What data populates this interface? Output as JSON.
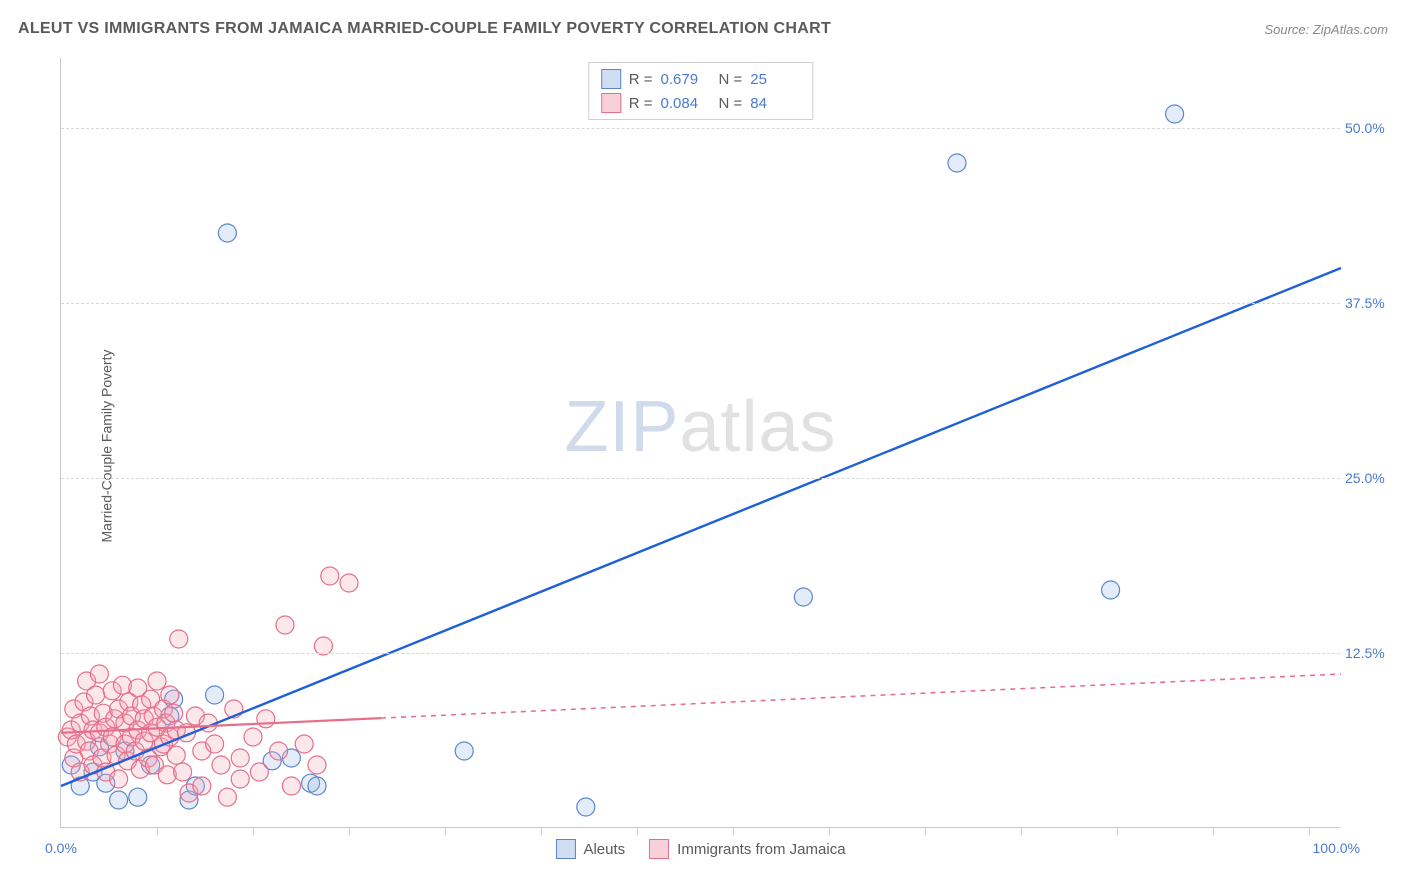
{
  "header": {
    "title": "ALEUT VS IMMIGRANTS FROM JAMAICA MARRIED-COUPLE FAMILY POVERTY CORRELATION CHART",
    "source": "Source: ZipAtlas.com"
  },
  "ylabel": "Married-Couple Family Poverty",
  "watermark": {
    "part1": "ZIP",
    "part2": "atlas"
  },
  "chart": {
    "type": "scatter",
    "background_color": "#ffffff",
    "grid_color": "#d8d8d8",
    "axis_color": "#c9c9c9",
    "xlim": [
      0,
      100
    ],
    "ylim": [
      0,
      55
    ],
    "x_ticks_minor_step": 7.5,
    "yticks": [
      {
        "v": 12.5,
        "label": "12.5%"
      },
      {
        "v": 25.0,
        "label": "25.0%"
      },
      {
        "v": 37.5,
        "label": "37.5%"
      },
      {
        "v": 50.0,
        "label": "50.0%"
      }
    ],
    "x_axis_labels": {
      "left": "0.0%",
      "right": "100.0%"
    },
    "marker_radius": 9,
    "marker_stroke_width": 1.2,
    "marker_fill_opacity": 0.28,
    "series": [
      {
        "id": "aleuts",
        "label": "Aleuts",
        "color_fill": "#9fbce8",
        "color_stroke": "#5b86cc",
        "line_color": "#1f5fd8",
        "line_width": 2.4,
        "line_dash": "none",
        "regression": {
          "x1": 0,
          "y1": 3.0,
          "x2": 100,
          "y2": 40.0,
          "solid_until_x": 100
        },
        "R": "0.679",
        "N": "25",
        "points": [
          [
            0.8,
            4.5
          ],
          [
            1.5,
            3.0
          ],
          [
            2.5,
            4.0
          ],
          [
            3.5,
            3.2
          ],
          [
            4.5,
            2.0
          ],
          [
            5.0,
            5.5
          ],
          [
            3.0,
            5.8
          ],
          [
            6.0,
            2.2
          ],
          [
            7.0,
            4.5
          ],
          [
            8.5,
            8.0
          ],
          [
            8.8,
            9.2
          ],
          [
            10.0,
            2.0
          ],
          [
            10.5,
            3.0
          ],
          [
            12.0,
            9.5
          ],
          [
            13.0,
            42.5
          ],
          [
            16.5,
            4.8
          ],
          [
            18.0,
            5.0
          ],
          [
            19.5,
            3.2
          ],
          [
            20.0,
            3.0
          ],
          [
            31.5,
            5.5
          ],
          [
            41.0,
            1.5
          ],
          [
            58.0,
            16.5
          ],
          [
            70.0,
            47.5
          ],
          [
            82.0,
            17.0
          ],
          [
            87.0,
            51.0
          ]
        ]
      },
      {
        "id": "jamaica",
        "label": "Immigrants from Jamaica",
        "color_fill": "#f3a8b8",
        "color_stroke": "#e46f8b",
        "line_color": "#e46f8b",
        "line_width": 2.2,
        "line_dash": "5,5",
        "regression": {
          "x1": 0,
          "y1": 6.8,
          "x2": 100,
          "y2": 11.0,
          "solid_until_x": 25
        },
        "R": "0.084",
        "N": "84",
        "points": [
          [
            0.5,
            6.5
          ],
          [
            0.8,
            7.0
          ],
          [
            1.0,
            5.0
          ],
          [
            1.0,
            8.5
          ],
          [
            1.2,
            6.0
          ],
          [
            1.5,
            7.5
          ],
          [
            1.5,
            4.0
          ],
          [
            1.8,
            9.0
          ],
          [
            2.0,
            6.2
          ],
          [
            2.0,
            10.5
          ],
          [
            2.2,
            5.5
          ],
          [
            2.3,
            8.0
          ],
          [
            2.5,
            7.0
          ],
          [
            2.5,
            4.5
          ],
          [
            2.7,
            9.5
          ],
          [
            3.0,
            6.8
          ],
          [
            3.0,
            11.0
          ],
          [
            3.2,
            5.0
          ],
          [
            3.3,
            8.2
          ],
          [
            3.5,
            7.2
          ],
          [
            3.5,
            4.0
          ],
          [
            3.8,
            6.0
          ],
          [
            4.0,
            9.8
          ],
          [
            4.0,
            6.5
          ],
          [
            4.2,
            7.8
          ],
          [
            4.3,
            5.2
          ],
          [
            4.5,
            8.5
          ],
          [
            4.5,
            3.5
          ],
          [
            4.8,
            10.2
          ],
          [
            5.0,
            6.0
          ],
          [
            5.0,
            7.5
          ],
          [
            5.2,
            4.8
          ],
          [
            5.3,
            9.0
          ],
          [
            5.5,
            6.5
          ],
          [
            5.5,
            8.0
          ],
          [
            5.8,
            5.5
          ],
          [
            6.0,
            7.0
          ],
          [
            6.0,
            10.0
          ],
          [
            6.2,
            4.2
          ],
          [
            6.3,
            8.8
          ],
          [
            6.5,
            6.2
          ],
          [
            6.5,
            7.8
          ],
          [
            6.8,
            5.0
          ],
          [
            7.0,
            9.2
          ],
          [
            7.0,
            6.8
          ],
          [
            7.2,
            8.0
          ],
          [
            7.3,
            4.5
          ],
          [
            7.5,
            7.2
          ],
          [
            7.5,
            10.5
          ],
          [
            7.8,
            5.8
          ],
          [
            8.0,
            8.5
          ],
          [
            8.0,
            6.0
          ],
          [
            8.2,
            7.5
          ],
          [
            8.3,
            3.8
          ],
          [
            8.5,
            9.5
          ],
          [
            8.5,
            6.5
          ],
          [
            8.8,
            8.2
          ],
          [
            9.0,
            5.2
          ],
          [
            9.0,
            7.0
          ],
          [
            9.2,
            13.5
          ],
          [
            9.5,
            4.0
          ],
          [
            9.8,
            6.8
          ],
          [
            10.0,
            2.5
          ],
          [
            10.5,
            8.0
          ],
          [
            11.0,
            5.5
          ],
          [
            11.0,
            3.0
          ],
          [
            11.5,
            7.5
          ],
          [
            12.0,
            6.0
          ],
          [
            12.5,
            4.5
          ],
          [
            13.0,
            2.2
          ],
          [
            13.5,
            8.5
          ],
          [
            14.0,
            5.0
          ],
          [
            14.0,
            3.5
          ],
          [
            15.0,
            6.5
          ],
          [
            15.5,
            4.0
          ],
          [
            16.0,
            7.8
          ],
          [
            17.0,
            5.5
          ],
          [
            17.5,
            14.5
          ],
          [
            18.0,
            3.0
          ],
          [
            19.0,
            6.0
          ],
          [
            20.0,
            4.5
          ],
          [
            20.5,
            13.0
          ],
          [
            21.0,
            18.0
          ],
          [
            22.5,
            17.5
          ]
        ]
      }
    ]
  },
  "colors": {
    "text_gray": "#5a5a5a",
    "tick_blue": "#4a7bd0"
  }
}
